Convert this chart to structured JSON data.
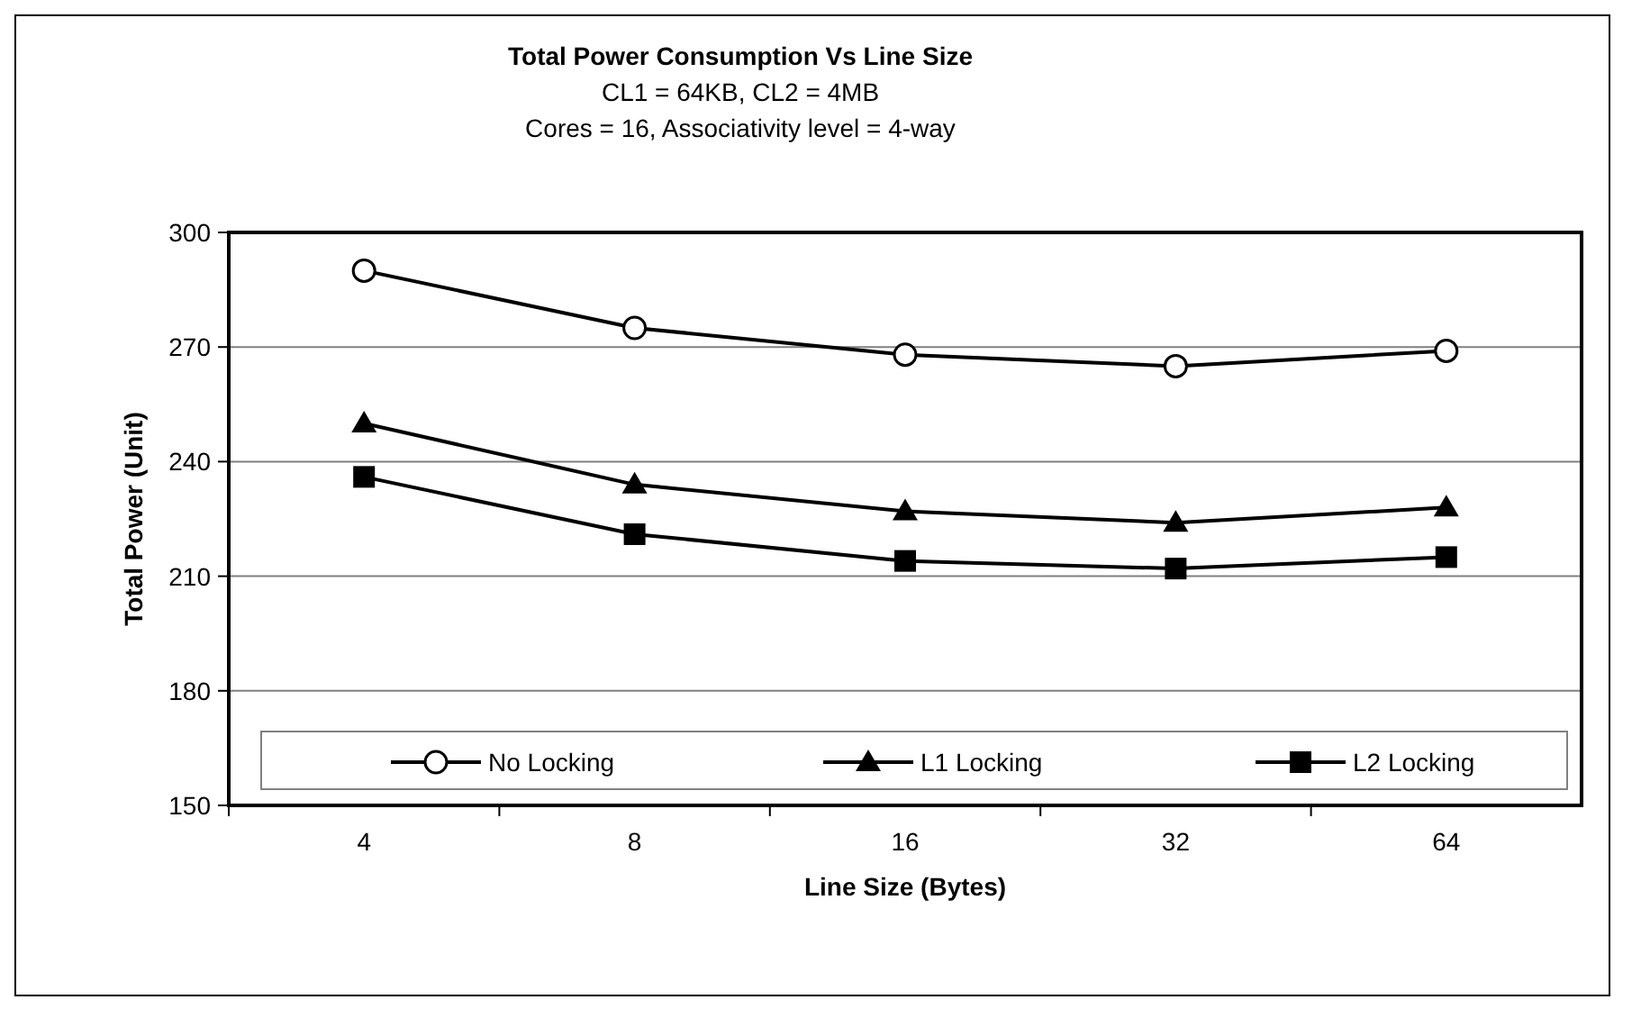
{
  "chart_data": {
    "type": "line",
    "title": "Total Power Consumption Vs Line Size",
    "subtitle": "CL1 = 64KB, CL2 = 4MB\nCores = 16, Associativity level = 4-way",
    "xlabel": "Line Size (Bytes)",
    "ylabel": "Total Power (Unit)",
    "categories": [
      "4",
      "8",
      "16",
      "32",
      "64"
    ],
    "series": [
      {
        "name": "No Locking",
        "color": "#000000",
        "marker": "circle",
        "values": [
          290,
          275,
          268,
          265,
          269
        ]
      },
      {
        "name": "L1 Locking",
        "color": "#000000",
        "marker": "triangle",
        "values": [
          250,
          234,
          227,
          224,
          228
        ]
      },
      {
        "name": "L2 Locking",
        "color": "#000000",
        "marker": "square",
        "values": [
          236,
          221,
          214,
          212,
          215
        ]
      }
    ],
    "ylim": [
      150,
      300
    ],
    "yticks": [
      150,
      180,
      210,
      240,
      270,
      300
    ],
    "grid": "y",
    "legend": "bottom",
    "line_style": "solid"
  }
}
